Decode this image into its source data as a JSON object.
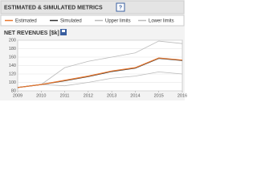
{
  "header": {
    "title": "ESTIMATED & SIMULATED METRICS",
    "help": "?"
  },
  "chart_data": {
    "type": "line",
    "title": "NET REVENUES [$k]",
    "x": [
      2009,
      2010,
      2011,
      2012,
      2013,
      2014,
      2015,
      2016
    ],
    "xlim": [
      2009,
      2016
    ],
    "xticks": [
      2009,
      2010,
      2011,
      2012,
      2013,
      2014,
      2015,
      2016
    ],
    "ylim": [
      80,
      200
    ],
    "yticks": [
      80,
      100,
      120,
      140,
      160,
      180,
      200
    ],
    "grid": true,
    "series": [
      {
        "name": "Estimated",
        "color": "#e8772e",
        "values": [
          88,
          95,
          105,
          115,
          127,
          135,
          158,
          153
        ]
      },
      {
        "name": "Simulated",
        "color": "#333333",
        "values": [
          88,
          95,
          104,
          114,
          126,
          134,
          157,
          152
        ]
      },
      {
        "name": "Upper limits",
        "color": "#bbbbbb",
        "values": [
          null,
          95,
          135,
          150,
          160,
          170,
          198,
          192
        ]
      },
      {
        "name": "Lower limits",
        "color": "#bbbbbb",
        "values": [
          null,
          95,
          92,
          100,
          110,
          115,
          125,
          120
        ]
      }
    ]
  }
}
